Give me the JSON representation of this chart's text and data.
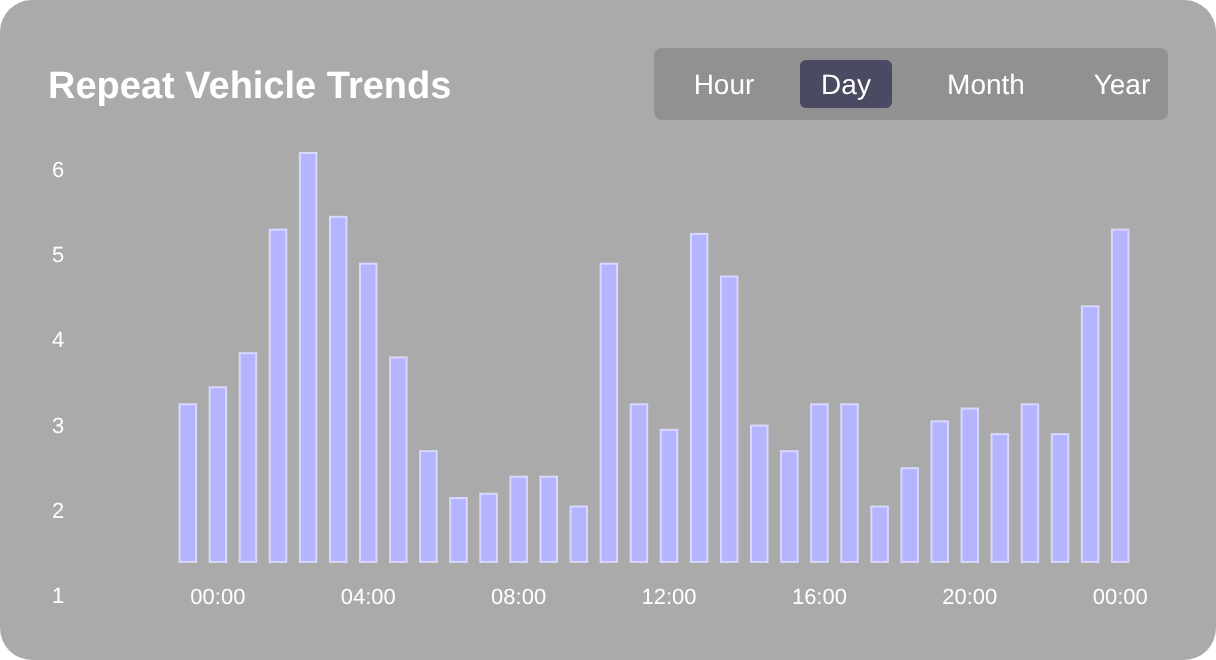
{
  "chart_data": {
    "type": "bar",
    "title": "Repeat Vehicle Trends",
    "annotations": [
      "Hour",
      "Day",
      "Month",
      "Year"
    ],
    "categories": [
      null,
      "00:00",
      null,
      null,
      null,
      null,
      "04:00",
      null,
      null,
      null,
      null,
      "08:00",
      null,
      null,
      null,
      null,
      "12:00",
      null,
      null,
      null,
      null,
      "16:00",
      null,
      null,
      null,
      null,
      "20:00",
      null,
      null,
      null,
      null,
      "00:00"
    ],
    "base": [
      1.4,
      1.4,
      1.4,
      1.4,
      1.4,
      1.4,
      1.4,
      1.4,
      1.4,
      1.4,
      1.4,
      1.4,
      1.4,
      1.4,
      1.4,
      1.4,
      1.4,
      1.4,
      1.4,
      1.4,
      1.4,
      1.4,
      1.4,
      1.4,
      1.4,
      1.4,
      1.4,
      1.4,
      1.4,
      1.4,
      1.4,
      1.4
    ],
    "values": [
      1.85,
      2.05,
      2.45,
      3.9,
      4.8,
      4.05,
      3.5,
      2.4,
      1.3,
      0.75,
      0.8,
      1.0,
      1.0,
      0.65,
      3.5,
      1.85,
      1.55,
      3.85,
      3.35,
      1.6,
      1.3,
      1.85,
      1.85,
      0.65,
      1.1,
      1.65,
      1.8,
      1.5,
      1.85,
      1.5,
      3.0,
      3.9
    ],
    "color": "#b4b4ff",
    "ylim": [
      1,
      6
    ],
    "yticks": [
      1,
      2,
      3,
      4,
      5,
      6
    ]
  }
}
